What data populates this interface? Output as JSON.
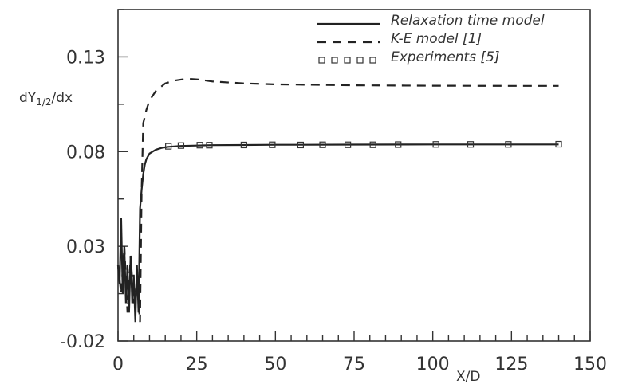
{
  "chart_data": {
    "type": "line",
    "title": "",
    "xlabel": "X/D",
    "ylabel": "dY1/2/dx",
    "ylabel_main": "dY",
    "ylabel_sub": "1/2",
    "ylabel_tail": "/dx",
    "xlim": [
      0,
      150
    ],
    "ylim": [
      -0.02,
      0.155
    ],
    "xticks": [
      0,
      25,
      50,
      75,
      100,
      125,
      150
    ],
    "xtick_labels": [
      "0",
      "25",
      "50",
      "75",
      "100",
      "125",
      "150"
    ],
    "yticks": [
      -0.02,
      0.03,
      0.08,
      0.13
    ],
    "ytick_labels": [
      "-0.02",
      "0.03",
      "0.08",
      "0.13"
    ],
    "grid": false,
    "legend_position": "top-right",
    "series": [
      {
        "name": "Relaxation time model",
        "style": "solid",
        "x": [
          0,
          0.5,
          1,
          1.5,
          2,
          2.5,
          3,
          3.5,
          4,
          4.5,
          5,
          5.5,
          6,
          6.5,
          7,
          7.5,
          8,
          8.5,
          9,
          10,
          11,
          12,
          14,
          16,
          20,
          25,
          30,
          40,
          50,
          60,
          75,
          100,
          125,
          140
        ],
        "y": [
          0.02,
          0.01,
          0.045,
          0.005,
          0.03,
          0.0,
          0.02,
          -0.005,
          0.025,
          0.0,
          0.015,
          -0.01,
          0.02,
          -0.005,
          0.05,
          0.06,
          0.068,
          0.073,
          0.076,
          0.079,
          0.08,
          0.081,
          0.082,
          0.0825,
          0.083,
          0.0832,
          0.0834,
          0.0835,
          0.0836,
          0.0836,
          0.0837,
          0.0838,
          0.0838,
          0.0838
        ]
      },
      {
        "name": "K-E model [1]",
        "style": "dashed",
        "x": [
          0,
          1,
          2,
          3,
          4,
          5,
          6,
          7,
          7.5,
          8,
          9,
          10,
          12,
          15,
          18,
          22,
          26,
          30,
          40,
          50,
          75,
          100,
          125,
          140
        ],
        "y": [
          0.02,
          0.005,
          0.03,
          -0.005,
          0.025,
          0.0,
          0.01,
          -0.01,
          0.06,
          0.095,
          0.102,
          0.107,
          0.112,
          0.116,
          0.1175,
          0.1185,
          0.118,
          0.117,
          0.116,
          0.1155,
          0.115,
          0.1148,
          0.1147,
          0.1147
        ]
      },
      {
        "name": "Experiments [5]",
        "style": "markers",
        "x": [
          16,
          20,
          26,
          29,
          40,
          49,
          58,
          65,
          73,
          81,
          89,
          101,
          112,
          124,
          140
        ],
        "y": [
          0.0828,
          0.0832,
          0.0834,
          0.0834,
          0.0835,
          0.0836,
          0.0835,
          0.0836,
          0.0836,
          0.0836,
          0.0837,
          0.0838,
          0.0838,
          0.0838,
          0.0839
        ]
      }
    ]
  }
}
